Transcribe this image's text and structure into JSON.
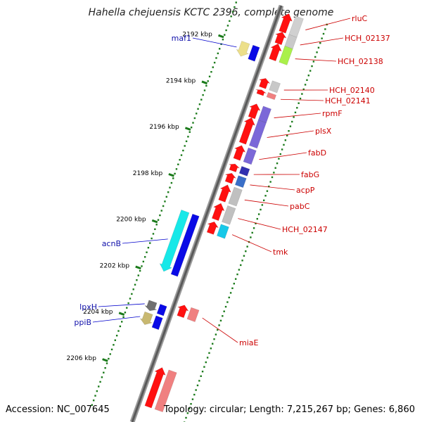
{
  "title": "Hahella chejuensis KCTC 2396, complete genome",
  "accession_label": "Accession: NC_007645",
  "topology_label": "Topology: circular; Length: 7,215,267 bp; Genes: 6,860",
  "colors": {
    "backbone": "#777777",
    "tick": "#1a7a1a",
    "forward_label": "#1010aa",
    "reverse_label": "#cc0000",
    "leader_forward": "#0000cc",
    "leader_reverse": "#cc0000"
  },
  "kbp_ticks": [
    {
      "kbp": 2192,
      "label": "2192 kbp"
    },
    {
      "kbp": 2194,
      "label": "2194 kbp"
    },
    {
      "kbp": 2196,
      "label": "2196 kbp"
    },
    {
      "kbp": 2198,
      "label": "2198 kbp"
    },
    {
      "kbp": 2200,
      "label": "2200 kbp"
    },
    {
      "kbp": 2202,
      "label": "2202 kbp"
    },
    {
      "kbp": 2204,
      "label": "2204 kbp"
    },
    {
      "kbp": 2206,
      "label": "2206 kbp"
    }
  ],
  "forward_genes": [
    {
      "name": "maf1",
      "start": 2191.9,
      "end": 2192.5,
      "colors": [
        "#ecdf8a",
        "#0a0ae6"
      ]
    },
    {
      "name": "acnB",
      "start": 2199.2,
      "end": 2201.8,
      "colors": [
        "#17e8e8",
        "#0a0ae6"
      ]
    },
    {
      "name": "lpxH",
      "start": 2203.1,
      "end": 2203.5,
      "colors": [
        "#707070",
        "#0a0ae6"
      ]
    },
    {
      "name": "ppiB",
      "start": 2203.6,
      "end": 2204.1,
      "colors": [
        "#c8b870",
        "#0a0ae6"
      ]
    }
  ],
  "reverse_genes": [
    {
      "name": "rluC",
      "start": 2190.2,
      "end": 2191.0,
      "colors": [
        "#ff1010",
        "#d0d0d0"
      ]
    },
    {
      "name": "HCH_02137",
      "start": 2191.0,
      "end": 2191.5,
      "colors": [
        "#ff1010",
        "#c9c9c9"
      ]
    },
    {
      "name": "HCH_02138",
      "start": 2191.5,
      "end": 2192.2,
      "colors": [
        "#ff1010",
        "#aaf04a"
      ]
    },
    {
      "name": "HCH_02140",
      "start": 2193.0,
      "end": 2193.4,
      "colors": [
        "#ff1010",
        "#c8c8c8"
      ]
    },
    {
      "name": "HCH_02141",
      "start": 2193.5,
      "end": 2193.7,
      "colors": [
        "#ff1010",
        "#f08080"
      ]
    },
    {
      "name": "rpmF",
      "start": 2194.1,
      "end": 2194.7,
      "colors": [
        "#ff1010",
        "#7b68d8"
      ]
    },
    {
      "name": "plsX",
      "start": 2194.7,
      "end": 2195.8,
      "colors": [
        "#ff1010",
        "#7b68d8"
      ]
    },
    {
      "name": "fabD",
      "start": 2195.9,
      "end": 2196.5,
      "colors": [
        "#ff1010",
        "#7b68d8"
      ]
    },
    {
      "name": "fabG",
      "start": 2196.7,
      "end": 2197.0,
      "colors": [
        "#ff1010",
        "#3030b0"
      ]
    },
    {
      "name": "acpP",
      "start": 2197.1,
      "end": 2197.5,
      "colors": [
        "#ff1010",
        "#3a6fc8"
      ]
    },
    {
      "name": "pabC",
      "start": 2197.6,
      "end": 2198.3,
      "colors": [
        "#ff1010",
        "#c0c0c0"
      ]
    },
    {
      "name": "HCH_02147",
      "start": 2198.4,
      "end": 2199.1,
      "colors": [
        "#ff1010",
        "#c0c0c0"
      ]
    },
    {
      "name": "tmk",
      "start": 2199.2,
      "end": 2199.7,
      "colors": [
        "#ff1010",
        "#17c8e8"
      ]
    },
    {
      "name": "miaE",
      "start": 2202.8,
      "end": 2203.3,
      "colors": [
        "#ff1010",
        "#f08080"
      ]
    },
    {
      "name": "",
      "start": 2205.5,
      "end": 2207.2,
      "colors": [
        "#ff1010",
        "#f08080"
      ]
    }
  ]
}
